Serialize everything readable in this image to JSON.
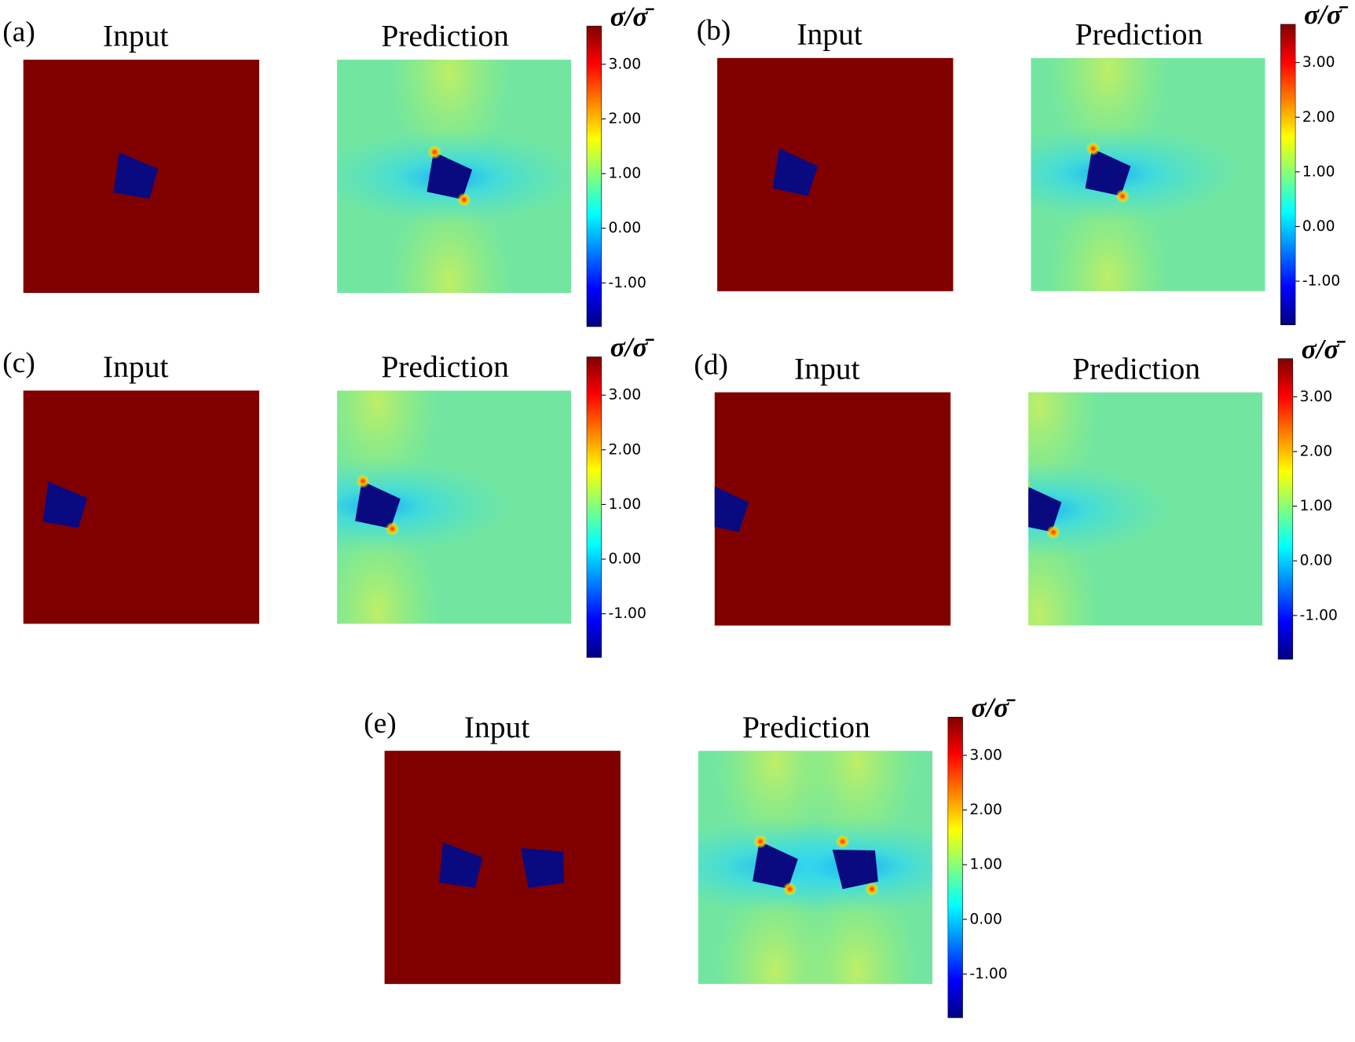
{
  "panels": [
    {
      "label": "(a)",
      "input_title": "Input",
      "prediction_title": "Prediction",
      "colorbar": {
        "label": "σ/σ̄",
        "range": [
          -1.8,
          3.7
        ],
        "ticks": [
          {
            "value": 3,
            "label": "3.00"
          },
          {
            "value": 2,
            "label": "2.00"
          },
          {
            "value": 1,
            "label": "1.00"
          },
          {
            "value": 0,
            "label": "0.00"
          },
          {
            "value": -1,
            "label": "-1.00"
          }
        ]
      }
    },
    {
      "label": "(b)",
      "input_title": "Input",
      "prediction_title": "Prediction",
      "colorbar": {
        "label": "σ/σ̄",
        "range": [
          -1.8,
          3.7
        ],
        "ticks": [
          {
            "value": 3,
            "label": "3.00"
          },
          {
            "value": 2,
            "label": "2.00"
          },
          {
            "value": 1,
            "label": "1.00"
          },
          {
            "value": 0,
            "label": "0.00"
          },
          {
            "value": -1,
            "label": "-1.00"
          }
        ]
      }
    },
    {
      "label": "(c)",
      "input_title": "Input",
      "prediction_title": "Prediction",
      "colorbar": {
        "label": "σ/σ̄",
        "range": [
          -1.8,
          3.7
        ],
        "ticks": [
          {
            "value": 3,
            "label": "3.00"
          },
          {
            "value": 2,
            "label": "2.00"
          },
          {
            "value": 1,
            "label": "1.00"
          },
          {
            "value": 0,
            "label": "0.00"
          },
          {
            "value": -1,
            "label": "-1.00"
          }
        ]
      }
    },
    {
      "label": "(d)",
      "input_title": "Input",
      "prediction_title": "Prediction",
      "colorbar": {
        "label": "σ/σ̄",
        "range": [
          -1.8,
          3.7
        ],
        "ticks": [
          {
            "value": 3,
            "label": "3.00"
          },
          {
            "value": 2,
            "label": "2.00"
          },
          {
            "value": 1,
            "label": "1.00"
          },
          {
            "value": 0,
            "label": "0.00"
          },
          {
            "value": -1,
            "label": "-1.00"
          }
        ]
      }
    },
    {
      "label": "(e)",
      "input_title": "Input",
      "prediction_title": "Prediction",
      "colorbar": {
        "label": "σ/σ̄",
        "range": [
          -1.8,
          3.7
        ],
        "ticks": [
          {
            "value": 3,
            "label": "3.00"
          },
          {
            "value": 2,
            "label": "2.00"
          },
          {
            "value": 1,
            "label": "1.00"
          },
          {
            "value": 0,
            "label": "0.00"
          },
          {
            "value": -1,
            "label": "-1.00"
          }
        ]
      }
    }
  ]
}
